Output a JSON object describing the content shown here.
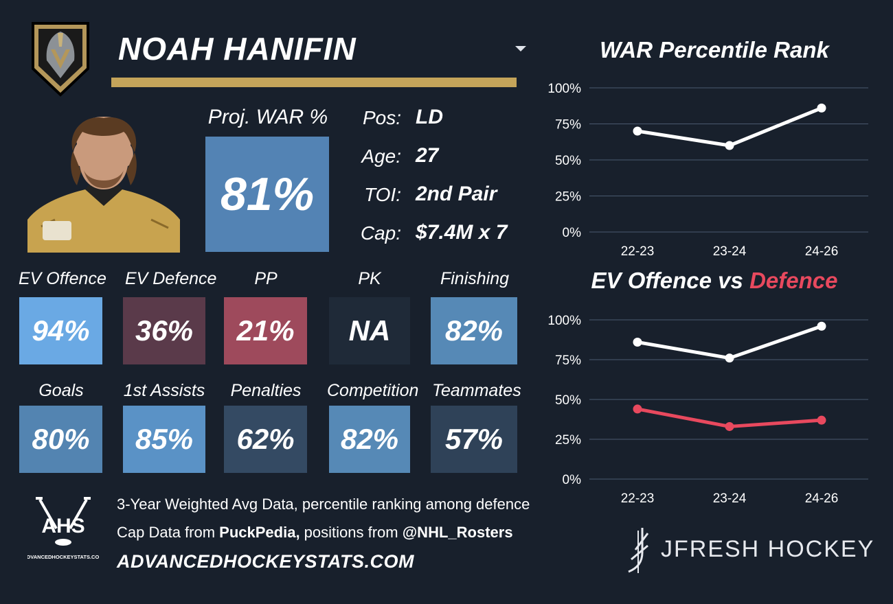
{
  "player": {
    "name": "NOAH HANIFIN"
  },
  "projection": {
    "label": "Proj. WAR %",
    "value": "81%",
    "color": "#5383b4"
  },
  "info": [
    {
      "label": "Pos:",
      "value": "LD"
    },
    {
      "label": "Age:",
      "value": "27"
    },
    {
      "label": "TOI:",
      "value": "2nd Pair"
    },
    {
      "label": "Cap:",
      "value": "$7.4M x 7"
    }
  ],
  "tiles_row1": [
    {
      "label": "EV Offence",
      "value": "94%",
      "color": "#6aa9e4"
    },
    {
      "label": "EV Defence",
      "value": "36%",
      "color": "#5a3a4a"
    },
    {
      "label": "PP",
      "value": "21%",
      "color": "#9e4a5c"
    },
    {
      "label": "PK",
      "value": "NA",
      "color": "#1f2a38"
    },
    {
      "label": "Finishing",
      "value": "82%",
      "color": "#5689b6"
    }
  ],
  "tiles_row2": [
    {
      "label": "Goals",
      "value": "80%",
      "color": "#5384b1"
    },
    {
      "label": "1st Assists",
      "value": "85%",
      "color": "#5a92c6"
    },
    {
      "label": "Penalties",
      "value": "62%",
      "color": "#344a63"
    },
    {
      "label": "Competition",
      "value": "82%",
      "color": "#5689b6"
    },
    {
      "label": "Teammates",
      "value": "57%",
      "color": "#2f4258"
    }
  ],
  "footer": {
    "line1": "3-Year Weighted Avg Data, percentile ranking among defence",
    "line2_a": "Cap Data from ",
    "line2_b": "PuckPedia,",
    "line2_c": " positions from ",
    "line2_d": "@NHL_Rosters",
    "site": "ADVANCEDHOCKEYSTATS.COM",
    "ahs_logo_text": "AHS",
    "ahs_logo_sub": "ADVANCEDHOCKEYSTATS.COM",
    "brand": "JFRESH HOCKEY"
  },
  "colors": {
    "background": "#18202c",
    "gold": "#c4a45a",
    "offence_line": "#ffffff",
    "defence_line": "#e8495e",
    "grid": "#4a5a70"
  },
  "chart_data": [
    {
      "type": "line",
      "title": "WAR Percentile Rank",
      "categories": [
        "22-23",
        "23-24",
        "24-26"
      ],
      "series": [
        {
          "values": [
            70,
            60,
            86
          ]
        }
      ],
      "yticks": [
        "0%",
        "25%",
        "50%",
        "75%",
        "100%"
      ],
      "ylim": [
        0,
        100
      ],
      "grid": true
    },
    {
      "type": "line",
      "title_a": "EV Offence vs ",
      "title_b": "Defence",
      "categories": [
        "22-23",
        "23-24",
        "24-26"
      ],
      "series": [
        {
          "values": [
            86,
            76,
            96
          ],
          "color": "#ffffff"
        },
        {
          "values": [
            44,
            33,
            37
          ],
          "color": "#e8495e"
        }
      ],
      "yticks": [
        "0%",
        "25%",
        "50%",
        "75%",
        "100%"
      ],
      "ylim": [
        0,
        100
      ],
      "grid": true
    }
  ]
}
